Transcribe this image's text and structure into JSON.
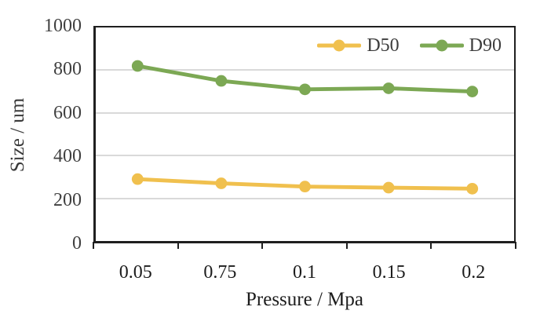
{
  "chart_data": {
    "type": "line",
    "title": "",
    "xlabel": "Pressure / Mpa",
    "ylabel": "Size / um",
    "categories": [
      "0.05",
      "0.75",
      "0.1",
      "0.15",
      "0.2"
    ],
    "series": [
      {
        "name": "D50",
        "values": [
          290,
          270,
          255,
          250,
          245
        ],
        "color": "#F0C04E"
      },
      {
        "name": "D90",
        "values": [
          820,
          750,
          710,
          715,
          700
        ],
        "color": "#7CA854"
      }
    ],
    "ylim": [
      0,
      1000
    ],
    "yticks": [
      0,
      200,
      400,
      600,
      800,
      1000
    ],
    "gridlines": [
      200,
      400,
      600,
      800
    ],
    "grid": "horizontal",
    "legend_position": "top-right-inside",
    "legend_entries": [
      "D50",
      "D90"
    ]
  },
  "style": {
    "grid_color": "#d9d9d9",
    "axis_color": "#1f1f1f",
    "tick_text_color": "#404040",
    "background": "#ffffff"
  }
}
